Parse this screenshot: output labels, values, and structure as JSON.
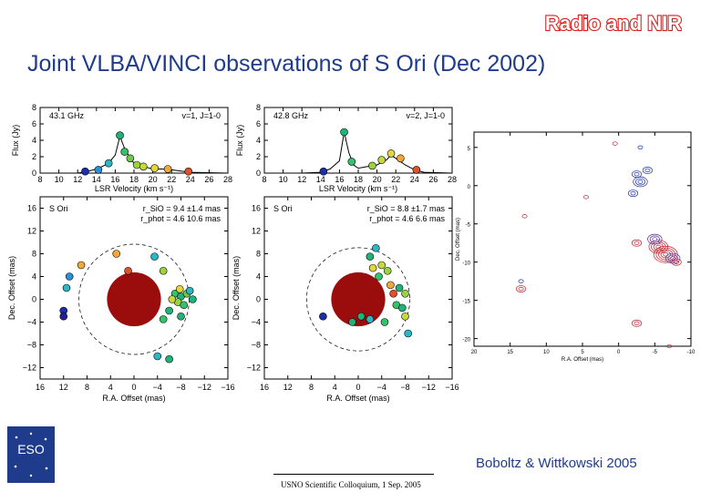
{
  "badge": {
    "text": "Radio and NIR",
    "color": "#d81f1f"
  },
  "title": "Joint VLBA/VINCI observations of S Ori (Dec 2002)",
  "citation": "Boboltz & Wittkowski 2005",
  "footer": "USNO Scientific Colloquium, 1 Sep. 2005",
  "logo": {
    "text": "ESO"
  },
  "chart_data": [
    {
      "type": "line",
      "label_left": "43.1 GHz",
      "label_right": "v=1, J=1-0",
      "xlabel": "LSR Velocity (km s⁻¹)",
      "ylabel": "Flux (Jy)",
      "xlim": [
        8,
        28
      ],
      "ylim": [
        0,
        8
      ],
      "xticks": [
        "8",
        "10",
        "12",
        "14",
        "16",
        "18",
        "20",
        "22",
        "24",
        "26",
        "28"
      ],
      "yticks": [
        "0",
        "2",
        "4",
        "6",
        "8"
      ],
      "x": [
        8,
        10,
        12,
        13,
        14,
        15,
        15.5,
        16,
        16.5,
        17,
        17.5,
        18,
        18.5,
        19,
        20,
        21,
        22,
        24,
        28
      ],
      "y": [
        0,
        0,
        0,
        0.2,
        0.5,
        1.0,
        1.5,
        2.2,
        4.5,
        3.0,
        2.0,
        1.2,
        1.0,
        0.8,
        0.5,
        0.5,
        0.4,
        0.1,
        0
      ],
      "points": [
        {
          "x": 12.8,
          "y": 0.2,
          "c": "#1c2fa8"
        },
        {
          "x": 14.2,
          "y": 0.4,
          "c": "#2b8fd6"
        },
        {
          "x": 15.3,
          "y": 1.2,
          "c": "#2bb7c4"
        },
        {
          "x": 16.5,
          "y": 4.6,
          "c": "#21b27a"
        },
        {
          "x": 17.0,
          "y": 2.6,
          "c": "#36c16b"
        },
        {
          "x": 17.6,
          "y": 1.8,
          "c": "#6ec94a"
        },
        {
          "x": 18.3,
          "y": 1.0,
          "c": "#9bd33d"
        },
        {
          "x": 19.0,
          "y": 0.8,
          "c": "#c6d93a"
        },
        {
          "x": 20.2,
          "y": 0.6,
          "c": "#e3d53a"
        },
        {
          "x": 21.6,
          "y": 0.5,
          "c": "#f0a83a"
        },
        {
          "x": 23.8,
          "y": 0.2,
          "c": "#e0502b"
        }
      ]
    },
    {
      "type": "line",
      "label_left": "42.8 GHz",
      "label_right": "v=2, J=1-0",
      "xlabel": "LSR Velocity (km s⁻¹)",
      "ylabel": "Flux (Jy)",
      "xlim": [
        8,
        28
      ],
      "ylim": [
        0,
        8
      ],
      "xticks": [
        "8",
        "10",
        "12",
        "14",
        "16",
        "18",
        "20",
        "22",
        "24",
        "26",
        "28"
      ],
      "yticks": [
        "0",
        "2",
        "4",
        "6",
        "8"
      ],
      "x": [
        8,
        12,
        14,
        15,
        16,
        16.5,
        17,
        17.5,
        18,
        19,
        20,
        21,
        21.5,
        22,
        23,
        24,
        25,
        28
      ],
      "y": [
        0,
        0,
        0.1,
        0.5,
        1.5,
        5.0,
        2.5,
        1.0,
        0.6,
        0.8,
        1.0,
        1.6,
        2.2,
        1.8,
        1.0,
        0.4,
        0.1,
        0
      ],
      "points": [
        {
          "x": 14.3,
          "y": 0.2,
          "c": "#1c2fa8"
        },
        {
          "x": 16.5,
          "y": 5.0,
          "c": "#21b27a"
        },
        {
          "x": 17.3,
          "y": 1.4,
          "c": "#36c16b"
        },
        {
          "x": 19.5,
          "y": 0.9,
          "c": "#9bd33d"
        },
        {
          "x": 20.5,
          "y": 1.6,
          "c": "#c6d93a"
        },
        {
          "x": 21.5,
          "y": 2.4,
          "c": "#e3d53a"
        },
        {
          "x": 22.5,
          "y": 1.8,
          "c": "#f0a83a"
        },
        {
          "x": 24.2,
          "y": 0.4,
          "c": "#e0502b"
        }
      ]
    },
    {
      "type": "scatter",
      "label": "S Ori",
      "annotation_1": "r_SiO = 9.4 ±1.4 mas",
      "annotation_2": "r_phot = 4.6   10.6 mas",
      "xlabel": "R.A. Offset (mas)",
      "ylabel": "Dec. Offset (mas)",
      "xlim": [
        16,
        -16
      ],
      "ylim": [
        -14,
        18
      ],
      "xticks": [
        "16",
        "12",
        "8",
        "4",
        "0",
        "−4",
        "−8",
        "−12",
        "−16"
      ],
      "yticks": [
        "16",
        "12",
        "8",
        "4",
        "0",
        "−4",
        "−8",
        "−12"
      ],
      "star_radius": 4.6,
      "ring_radius": 9.4,
      "points": [
        {
          "x": -7,
          "y": 1,
          "c": "#36c16b"
        },
        {
          "x": -8,
          "y": 0.5,
          "c": "#21b27a"
        },
        {
          "x": -9,
          "y": 1,
          "c": "#6ec94a"
        },
        {
          "x": -7.5,
          "y": -0.5,
          "c": "#9bd33d"
        },
        {
          "x": -8.5,
          "y": -1,
          "c": "#36c16b"
        },
        {
          "x": -10,
          "y": 0,
          "c": "#21b27a"
        },
        {
          "x": -6.5,
          "y": 0,
          "c": "#c6d93a"
        },
        {
          "x": -9.5,
          "y": 1.5,
          "c": "#2bb7c4"
        },
        {
          "x": -7.8,
          "y": 1.8,
          "c": "#e3d53a"
        },
        {
          "x": -6,
          "y": -2,
          "c": "#21b27a"
        },
        {
          "x": -8,
          "y": -3,
          "c": "#21b27a"
        },
        {
          "x": -5,
          "y": -3.5,
          "c": "#36c16b"
        },
        {
          "x": -4,
          "y": -10,
          "c": "#2bb7c4"
        },
        {
          "x": -6,
          "y": -10.5,
          "c": "#21b27a"
        },
        {
          "x": 1,
          "y": 5,
          "c": "#e0502b"
        },
        {
          "x": 3,
          "y": 8,
          "c": "#f0a83a"
        },
        {
          "x": -3.5,
          "y": 7.5,
          "c": "#2bb7c4"
        },
        {
          "x": -5,
          "y": 5,
          "c": "#9bd33d"
        },
        {
          "x": 9,
          "y": 6,
          "c": "#f0a83a"
        },
        {
          "x": 11,
          "y": 4,
          "c": "#2b8fd6"
        },
        {
          "x": 11.5,
          "y": 2,
          "c": "#2bb7c4"
        },
        {
          "x": 12,
          "y": -2,
          "c": "#1c2fa8"
        },
        {
          "x": 12,
          "y": -3,
          "c": "#2b1e8c"
        }
      ]
    },
    {
      "type": "scatter",
      "label": "S Ori",
      "annotation_1": "r_SiO = 8.8 ±1.7 mas",
      "annotation_2": "r_phot = 4.6   6.6 mas",
      "xlabel": "R.A. Offset (mas)",
      "ylabel": "Dec. Offset (mas)",
      "xlim": [
        16,
        -16
      ],
      "ylim": [
        -14,
        18
      ],
      "xticks": [
        "16",
        "12",
        "8",
        "4",
        "0",
        "−4",
        "−8",
        "−12",
        "−16"
      ],
      "yticks": [
        "16",
        "12",
        "8",
        "4",
        "0",
        "−4",
        "−8",
        "−12"
      ],
      "star_radius": 4.6,
      "ring_radius": 8.8,
      "points": [
        {
          "x": -3,
          "y": 9,
          "c": "#2bb7c4"
        },
        {
          "x": -2,
          "y": 7.5,
          "c": "#21b27a"
        },
        {
          "x": -4,
          "y": 6,
          "c": "#c6d93a"
        },
        {
          "x": -2.5,
          "y": 5.5,
          "c": "#e3d53a"
        },
        {
          "x": -5,
          "y": 5,
          "c": "#9bd33d"
        },
        {
          "x": -3.5,
          "y": 4,
          "c": "#36c16b"
        },
        {
          "x": -5.5,
          "y": 2.5,
          "c": "#f0a83a"
        },
        {
          "x": -6,
          "y": 1,
          "c": "#e0502b"
        },
        {
          "x": -7,
          "y": 2,
          "c": "#21b27a"
        },
        {
          "x": -6.5,
          "y": -1,
          "c": "#36c16b"
        },
        {
          "x": -8,
          "y": 1,
          "c": "#9bd33d"
        },
        {
          "x": -7.5,
          "y": -1.5,
          "c": "#21b27a"
        },
        {
          "x": -2,
          "y": -3.5,
          "c": "#2bb7c4"
        },
        {
          "x": -0.5,
          "y": -3,
          "c": "#21b27a"
        },
        {
          "x": -4.5,
          "y": -4,
          "c": "#36c16b"
        },
        {
          "x": -8,
          "y": -3,
          "c": "#c6d93a"
        },
        {
          "x": -8.5,
          "y": -6,
          "c": "#2bb7c4"
        },
        {
          "x": 6,
          "y": -3,
          "c": "#1c2fa8"
        },
        {
          "x": 1,
          "y": -4,
          "c": "#21b27a"
        }
      ]
    },
    {
      "type": "scatter",
      "subtype": "contour",
      "xlabel": "R.A. Offset (mas)",
      "ylabel": "Dec. Offset (mas)",
      "xlim": [
        20,
        -10
      ],
      "ylim": [
        -21,
        7
      ],
      "xticks": [
        "20",
        "15",
        "10",
        "5",
        "0",
        "-5",
        "-10"
      ],
      "yticks": [
        "5",
        "0",
        "-5",
        "-10",
        "-15",
        "-20"
      ],
      "points": [
        {
          "x": -3,
          "y": 0.5,
          "c": "#1c2fa8",
          "r": 3
        },
        {
          "x": -2.5,
          "y": 1.5,
          "c": "#1c2fa8",
          "r": 2
        },
        {
          "x": -4,
          "y": 2,
          "c": "#1c2fa8",
          "r": 2
        },
        {
          "x": -2,
          "y": -1,
          "c": "#1c2fa8",
          "r": 2
        },
        {
          "x": -5.5,
          "y": -8,
          "c": "#c0202a",
          "r": 4
        },
        {
          "x": -6.5,
          "y": -9,
          "c": "#c0202a",
          "r": 5
        },
        {
          "x": -5,
          "y": -7,
          "c": "#5a2a9c",
          "r": 3
        },
        {
          "x": -7.5,
          "y": -9.5,
          "c": "#5a2a9c",
          "r": 3
        },
        {
          "x": -2.5,
          "y": -7.5,
          "c": "#c0202a",
          "r": 2
        },
        {
          "x": -8,
          "y": -10,
          "c": "#c0202a",
          "r": 2
        },
        {
          "x": 13.5,
          "y": -13.5,
          "c": "#c0202a",
          "r": 2
        },
        {
          "x": 13.5,
          "y": -12.5,
          "c": "#1c2fa8",
          "r": 1
        },
        {
          "x": -2.5,
          "y": -18,
          "c": "#c0202a",
          "r": 2
        },
        {
          "x": -7,
          "y": -21,
          "c": "#c0202a",
          "r": 1
        },
        {
          "x": 0.5,
          "y": 5.5,
          "c": "#c0202a",
          "r": 1
        },
        {
          "x": 4.5,
          "y": -1.5,
          "c": "#c0202a",
          "r": 1
        },
        {
          "x": -3,
          "y": 5,
          "c": "#1c2fa8",
          "r": 1
        },
        {
          "x": 13,
          "y": -4,
          "c": "#c0202a",
          "r": 1
        }
      ]
    }
  ]
}
